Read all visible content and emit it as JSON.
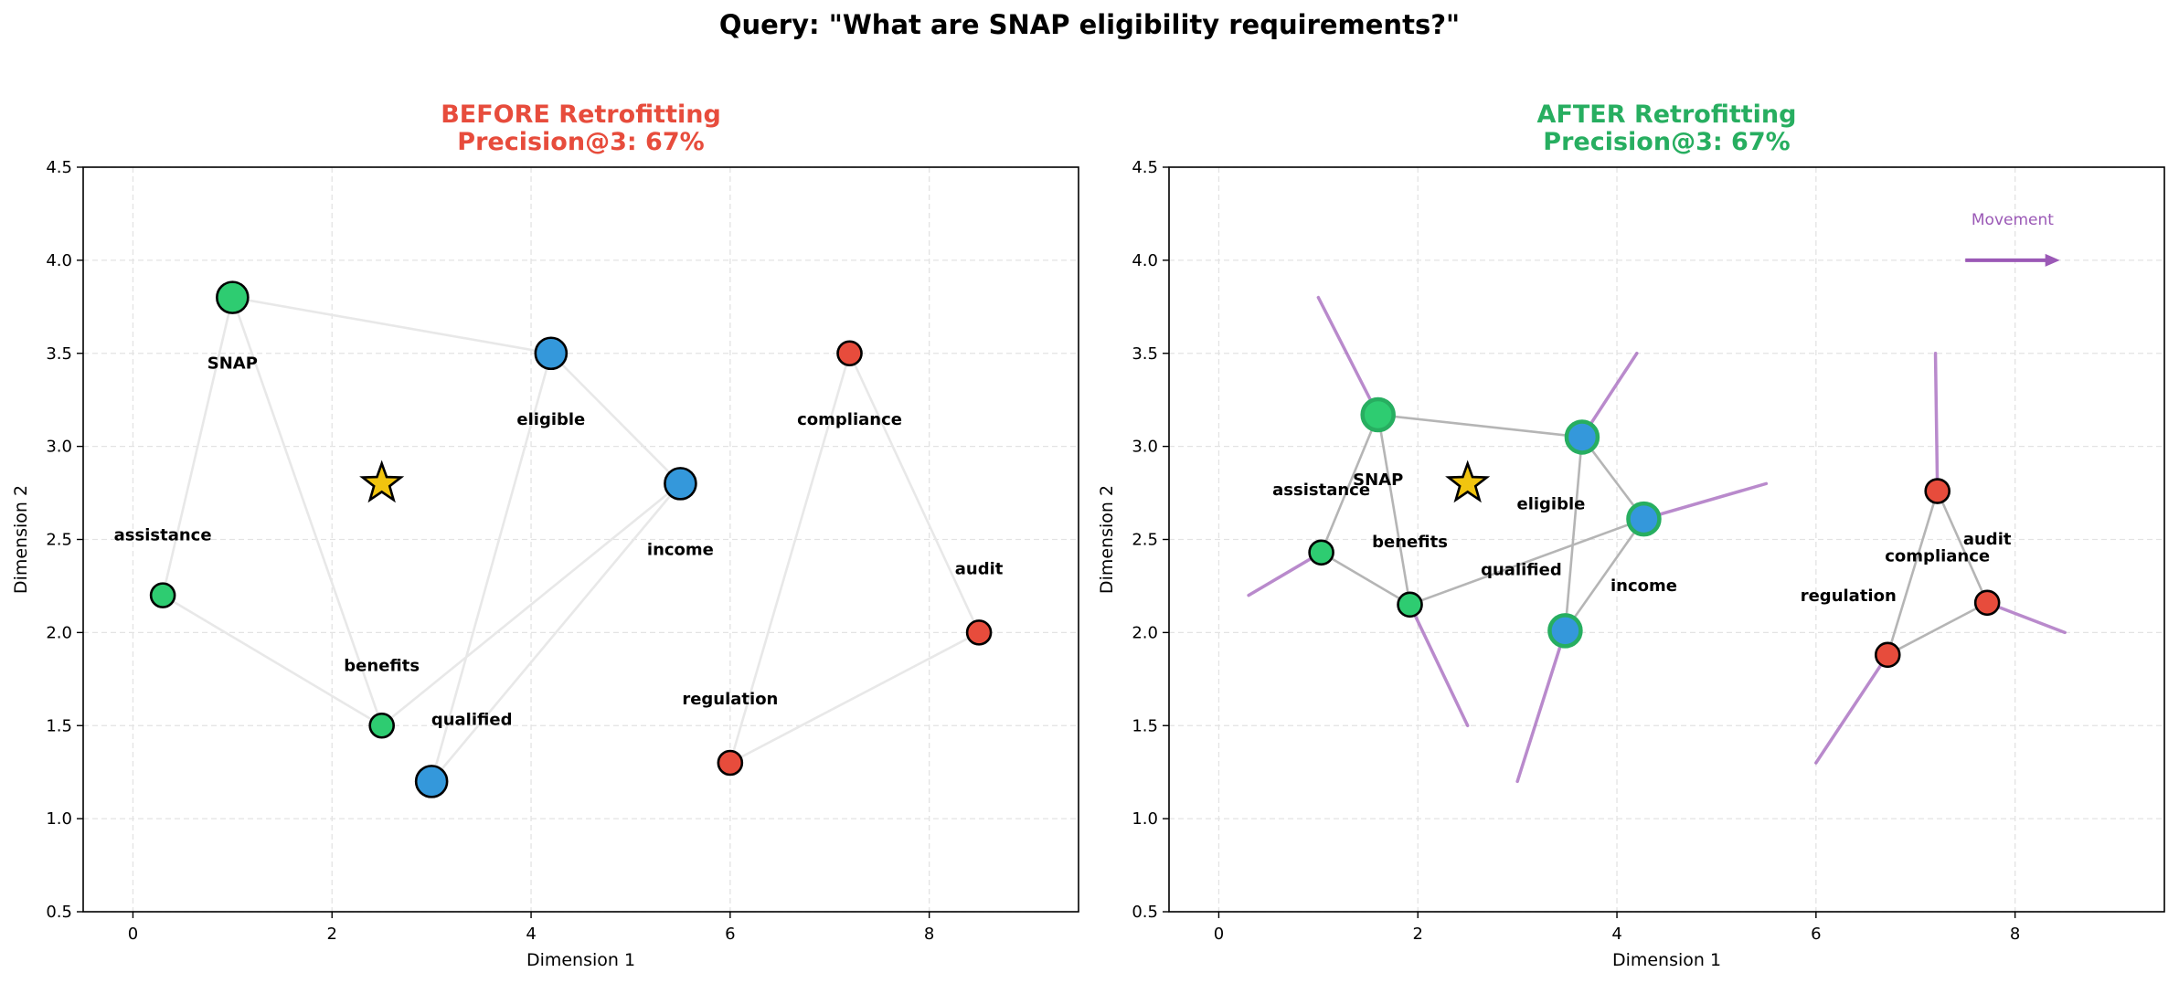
{
  "suptitle": "Query: \"What are SNAP eligibility requirements?\"",
  "chart_data": [
    {
      "type": "scatter",
      "title": "BEFORE Retrofitting",
      "subtitle": "Precision@3: 67%",
      "title_color": "#e74c3c",
      "xlabel": "Dimension 1",
      "ylabel": "Dimension 2",
      "xlim": [
        -0.5,
        9.5
      ],
      "ylim": [
        0.5,
        4.5
      ],
      "xticks": [
        0,
        2,
        4,
        6,
        8
      ],
      "yticks": [
        0.5,
        1.0,
        1.5,
        2.0,
        2.5,
        3.0,
        3.5,
        4.0,
        4.5
      ],
      "grid": true,
      "query_point": {
        "x": 2.5,
        "y": 2.8,
        "color": "#f1c40f"
      },
      "points": [
        {
          "label": "SNAP",
          "x": 1.0,
          "y": 3.8,
          "color": "#2ecc71",
          "size": "large"
        },
        {
          "label": "assistance",
          "x": 0.3,
          "y": 2.2,
          "color": "#2ecc71",
          "size": "small"
        },
        {
          "label": "benefits",
          "x": 2.5,
          "y": 1.5,
          "color": "#2ecc71",
          "size": "small"
        },
        {
          "label": "eligible",
          "x": 4.2,
          "y": 3.5,
          "color": "#3498db",
          "size": "large"
        },
        {
          "label": "income",
          "x": 5.5,
          "y": 2.8,
          "color": "#3498db",
          "size": "large"
        },
        {
          "label": "qualified",
          "x": 3.0,
          "y": 1.2,
          "color": "#3498db",
          "size": "large"
        },
        {
          "label": "compliance",
          "x": 7.2,
          "y": 3.5,
          "color": "#e74c3c",
          "size": "small"
        },
        {
          "label": "audit",
          "x": 8.5,
          "y": 2.0,
          "color": "#e74c3c",
          "size": "small"
        },
        {
          "label": "regulation",
          "x": 6.0,
          "y": 1.3,
          "color": "#e74c3c",
          "size": "small"
        }
      ],
      "edges": [
        [
          "SNAP",
          "assistance"
        ],
        [
          "SNAP",
          "benefits"
        ],
        [
          "SNAP",
          "eligible"
        ],
        [
          "assistance",
          "benefits"
        ],
        [
          "eligible",
          "income"
        ],
        [
          "eligible",
          "qualified"
        ],
        [
          "income",
          "qualified"
        ],
        [
          "income",
          "benefits"
        ],
        [
          "compliance",
          "audit"
        ],
        [
          "compliance",
          "regulation"
        ],
        [
          "audit",
          "regulation"
        ]
      ],
      "edge_color": "#e8e8e8"
    },
    {
      "type": "scatter",
      "title": "AFTER Retrofitting",
      "subtitle": "Precision@3: 67%",
      "title_color": "#27ae60",
      "xlabel": "Dimension 1",
      "ylabel": "Dimension 2",
      "xlim": [
        -0.5,
        9.5
      ],
      "ylim": [
        0.5,
        4.5
      ],
      "xticks": [
        0,
        2,
        4,
        6,
        8
      ],
      "yticks": [
        0.5,
        1.0,
        1.5,
        2.0,
        2.5,
        3.0,
        3.5,
        4.0,
        4.5
      ],
      "grid": true,
      "query_point": {
        "x": 2.5,
        "y": 2.8,
        "color": "#f1c40f"
      },
      "points": [
        {
          "label": "SNAP",
          "x": 1.6,
          "y": 3.17,
          "color": "#2ecc71",
          "size": "large",
          "edge": "#27ae60"
        },
        {
          "label": "assistance",
          "x": 1.03,
          "y": 2.43,
          "color": "#2ecc71",
          "size": "small"
        },
        {
          "label": "benefits",
          "x": 1.92,
          "y": 2.15,
          "color": "#2ecc71",
          "size": "small"
        },
        {
          "label": "eligible",
          "x": 3.65,
          "y": 3.05,
          "color": "#3498db",
          "size": "large",
          "edge": "#27ae60"
        },
        {
          "label": "income",
          "x": 4.27,
          "y": 2.61,
          "color": "#3498db",
          "size": "large",
          "edge": "#27ae60"
        },
        {
          "label": "qualified",
          "x": 3.48,
          "y": 2.01,
          "color": "#3498db",
          "size": "large",
          "edge": "#27ae60"
        },
        {
          "label": "compliance",
          "x": 7.22,
          "y": 2.76,
          "color": "#e74c3c",
          "size": "small"
        },
        {
          "label": "audit",
          "x": 7.72,
          "y": 2.16,
          "color": "#e74c3c",
          "size": "small"
        },
        {
          "label": "regulation",
          "x": 6.72,
          "y": 1.88,
          "color": "#e74c3c",
          "size": "small"
        }
      ],
      "edges": [
        [
          "SNAP",
          "assistance"
        ],
        [
          "SNAP",
          "benefits"
        ],
        [
          "SNAP",
          "eligible"
        ],
        [
          "assistance",
          "benefits"
        ],
        [
          "eligible",
          "income"
        ],
        [
          "eligible",
          "qualified"
        ],
        [
          "income",
          "qualified"
        ],
        [
          "income",
          "benefits"
        ],
        [
          "compliance",
          "audit"
        ],
        [
          "compliance",
          "regulation"
        ],
        [
          "audit",
          "regulation"
        ]
      ],
      "edge_color": "#b5b5b5",
      "movement_color": "#9b59b6",
      "movements": [
        {
          "label": "SNAP",
          "from": [
            1.0,
            3.8
          ],
          "to": [
            1.6,
            3.17
          ]
        },
        {
          "label": "assistance",
          "from": [
            0.3,
            2.2
          ],
          "to": [
            1.03,
            2.43
          ]
        },
        {
          "label": "benefits",
          "from": [
            2.5,
            1.5
          ],
          "to": [
            1.92,
            2.15
          ]
        },
        {
          "label": "eligible",
          "from": [
            4.2,
            3.5
          ],
          "to": [
            3.65,
            3.05
          ]
        },
        {
          "label": "income",
          "from": [
            5.5,
            2.8
          ],
          "to": [
            4.27,
            2.61
          ]
        },
        {
          "label": "qualified",
          "from": [
            3.0,
            1.2
          ],
          "to": [
            3.48,
            2.01
          ]
        },
        {
          "label": "compliance",
          "from": [
            7.2,
            3.5
          ],
          "to": [
            7.22,
            2.76
          ]
        },
        {
          "label": "audit",
          "from": [
            8.5,
            2.0
          ],
          "to": [
            7.72,
            2.16
          ]
        },
        {
          "label": "regulation",
          "from": [
            6.0,
            1.3
          ],
          "to": [
            6.72,
            1.88
          ]
        }
      ],
      "legend_arrow": {
        "label": "Movement",
        "from": [
          7.5,
          4.0
        ],
        "to": [
          8.45,
          4.0
        ]
      }
    }
  ]
}
